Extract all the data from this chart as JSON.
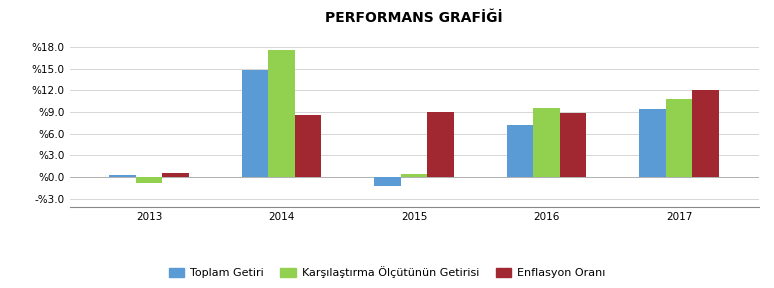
{
  "title": "PERFORMANS GRAFİĞİ",
  "years": [
    2013,
    2014,
    2015,
    2016,
    2017
  ],
  "toplam_getiri": [
    0.3,
    14.8,
    -1.2,
    7.2,
    9.4
  ],
  "karsılastırma_getirisi": [
    -0.8,
    17.6,
    0.4,
    9.6,
    10.8
  ],
  "enflasyon_orani": [
    0.6,
    8.6,
    9.0,
    8.8,
    12.0
  ],
  "bar_colors": [
    "#5b9bd5",
    "#92d050",
    "#a12830"
  ],
  "legend_labels": [
    "Toplam Getiri",
    "Karşılaştırma Ölçütünün Getirisi",
    "Enflasyon Oranı"
  ],
  "ylim": [
    -4.2,
    20.5
  ],
  "yticks": [
    -3.0,
    0.0,
    3.0,
    6.0,
    9.0,
    12.0,
    15.0,
    18.0
  ],
  "ytick_labels": [
    "-%3.0",
    "%0.0",
    "%3.0",
    "%6.0",
    "%9.0",
    "%12.0",
    "%15.0",
    "%18.0"
  ],
  "background_color": "#ffffff",
  "grid_color": "#d0d0d0",
  "title_fontsize": 10,
  "tick_fontsize": 7.5,
  "legend_fontsize": 8
}
